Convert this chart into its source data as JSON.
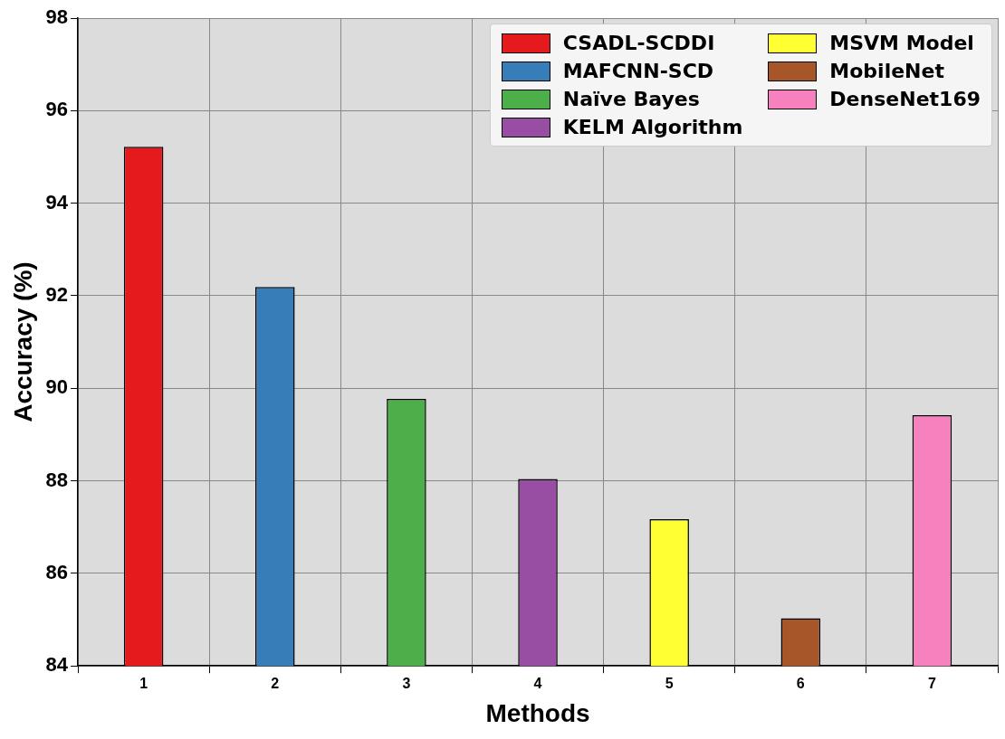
{
  "chart_data": {
    "type": "bar",
    "xlabel": "Methods",
    "ylabel": "Accuracy (%)",
    "categories": [
      "1",
      "2",
      "3",
      "4",
      "5",
      "6",
      "7"
    ],
    "series": [
      {
        "name": "CSADL-SCDDI",
        "color": "#e41a1c",
        "values": [
          95.22,
          null,
          null,
          null,
          null,
          null,
          null
        ]
      },
      {
        "name": "MAFCNN-SCD",
        "color": "#377eb8",
        "values": [
          null,
          92.19,
          null,
          null,
          null,
          null,
          null
        ]
      },
      {
        "name": "Naïve Bayes",
        "color": "#4daf4a",
        "values": [
          null,
          null,
          89.77,
          null,
          null,
          null,
          null
        ]
      },
      {
        "name": "KELM Algorithm",
        "color": "#984ea3",
        "values": [
          null,
          null,
          null,
          88.04,
          null,
          null,
          null
        ]
      },
      {
        "name": "MSVM Model",
        "color": "#ffff33",
        "values": [
          null,
          null,
          null,
          null,
          87.17,
          null,
          null
        ]
      },
      {
        "name": "MobileNet",
        "color": "#a65628",
        "values": [
          null,
          null,
          null,
          null,
          null,
          85.03,
          null
        ]
      },
      {
        "name": "DenseNet169",
        "color": "#f781bf",
        "values": [
          null,
          null,
          null,
          null,
          null,
          null,
          89.42
        ]
      }
    ],
    "ylim": [
      84,
      98
    ],
    "yticks": [
      84,
      86,
      88,
      90,
      92,
      94,
      96,
      98
    ],
    "grid": true,
    "legend": "top right"
  }
}
